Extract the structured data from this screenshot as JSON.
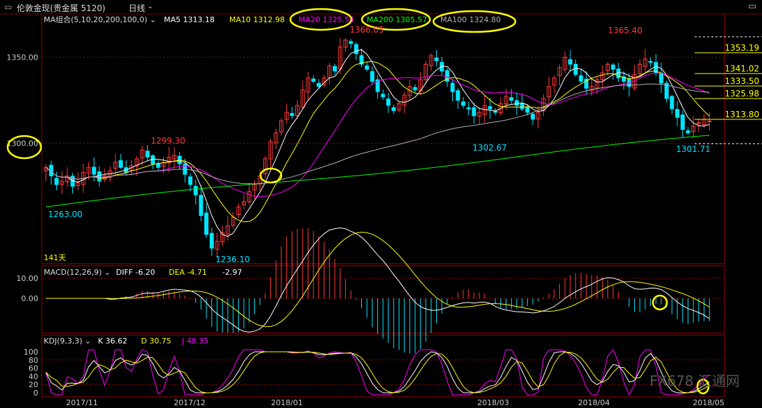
{
  "header": {
    "title": "伦敦金现(贵金属 5120)",
    "period": "日线",
    "ma_label": "MA组合(5,10,20,200,100,0)",
    "ma5": "MA5 1313.18",
    "ma10": "MA10 1312.98",
    "ma20": "MA20 1325.54",
    "ma200": "MA200 1305.57",
    "ma100": "MA100 1324.80"
  },
  "colors": {
    "up": "#ff3b3b",
    "down": "#00e5ff",
    "ma5": "#ffffff",
    "ma10": "#ffff00",
    "ma20": "#ff00ff",
    "ma200": "#00ff00",
    "ma100": "#b0b0b0",
    "grid": "#a00000",
    "highlight": "#ffff00"
  },
  "price_axis": {
    "ticks": [
      "1350.00",
      "1300.00"
    ]
  },
  "price_labels": {
    "high_left": "1299.30",
    "low_left": "1263.00",
    "low": "1236.10",
    "high1": "1366.05",
    "high2": "1365.40",
    "mid_low": "1302.67",
    "low_right": "1301.71",
    "days": "141天"
  },
  "right_levels": [
    "1353.19",
    "1341.02",
    "1333.50",
    "1325.98",
    "1313.80"
  ],
  "macd": {
    "label": "MACD(12,26,9)",
    "diff": "DIFF -6.20",
    "dea": "DEA -4.71",
    "macd": "-2.97",
    "ticks": [
      "10.00",
      "0.00"
    ]
  },
  "kdj": {
    "label": "KDJ(9,3,3)",
    "k": "K 36.62",
    "d": "D 30.75",
    "j": "J 48.35",
    "ticks": [
      "100",
      "80",
      "60",
      "40",
      "20",
      "0"
    ]
  },
  "watermark": "FX678 汇通网",
  "chart_data": {
    "type": "candlestick",
    "x_ticks": [
      "2017/11",
      "2017/12",
      "2018/01",
      "2018/03",
      "2018/04",
      "2018/05"
    ],
    "ylim": [
      1230,
      1372
    ],
    "closes": [
      1286,
      1281,
      1276,
      1278,
      1281,
      1275,
      1277,
      1283,
      1286,
      1282,
      1278,
      1281,
      1284,
      1289,
      1286,
      1283,
      1287,
      1291,
      1296,
      1292,
      1288,
      1286,
      1289,
      1292,
      1293,
      1288,
      1282,
      1276,
      1270,
      1258,
      1247,
      1239,
      1243,
      1248,
      1252,
      1257,
      1263,
      1266,
      1272,
      1276,
      1281,
      1291,
      1301,
      1306,
      1313,
      1318,
      1316,
      1322,
      1331,
      1338,
      1336,
      1333,
      1338,
      1345,
      1342,
      1356,
      1360,
      1358,
      1352,
      1346,
      1343,
      1336,
      1330,
      1327,
      1322,
      1319,
      1323,
      1328,
      1333,
      1331,
      1337,
      1346,
      1351,
      1348,
      1342,
      1336,
      1330,
      1325,
      1322,
      1320,
      1316,
      1318,
      1322,
      1320,
      1318,
      1323,
      1327,
      1325,
      1322,
      1320,
      1318,
      1314,
      1318,
      1326,
      1333,
      1338,
      1344,
      1350,
      1346,
      1340,
      1336,
      1332,
      1333,
      1337,
      1341,
      1346,
      1343,
      1338,
      1336,
      1333,
      1340,
      1346,
      1349,
      1347,
      1341,
      1335,
      1326,
      1320,
      1315,
      1308,
      1306,
      1310,
      1312,
      1314,
      1313
    ]
  }
}
